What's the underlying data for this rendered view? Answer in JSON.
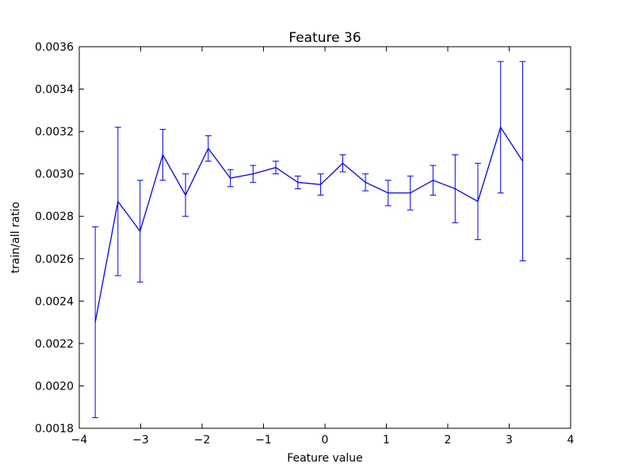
{
  "chart_data": {
    "type": "line",
    "title": "Feature 36",
    "xlabel": "Feature value",
    "ylabel": "train/all ratio",
    "xlim": [
      -4,
      4
    ],
    "ylim": [
      0.0018,
      0.0036
    ],
    "xticks": [
      -4,
      -3,
      -2,
      -1,
      0,
      1,
      2,
      3,
      4
    ],
    "xtick_labels": [
      "−4",
      "−3",
      "−2",
      "−1",
      "0",
      "1",
      "2",
      "3",
      "4"
    ],
    "yticks": [
      0.0018,
      0.002,
      0.0022,
      0.0024,
      0.0026,
      0.0028,
      0.003,
      0.0032,
      0.0034,
      0.0036
    ],
    "ytick_labels": [
      "0.0018",
      "0.0020",
      "0.0022",
      "0.0024",
      "0.0026",
      "0.0028",
      "0.0030",
      "0.0032",
      "0.0034",
      "0.0036"
    ],
    "grid": false,
    "legend": "none",
    "color": "#0000ff",
    "series": [
      {
        "x": [
          -3.74,
          -3.37,
          -3.01,
          -2.64,
          -2.27,
          -1.9,
          -1.54,
          -1.17,
          -0.8,
          -0.44,
          -0.07,
          0.29,
          0.66,
          1.03,
          1.39,
          1.76,
          2.12,
          2.49,
          2.86,
          3.22
        ],
        "y": [
          0.0023,
          0.00287,
          0.00273,
          0.00309,
          0.0029,
          0.00312,
          0.00298,
          0.003,
          0.00303,
          0.00296,
          0.00295,
          0.00305,
          0.00296,
          0.00291,
          0.00291,
          0.00297,
          0.00293,
          0.00287,
          0.00322,
          0.00306
        ],
        "err": [
          0.00045,
          0.00035,
          0.00024,
          0.00012,
          0.0001,
          6e-05,
          4e-05,
          4e-05,
          3e-05,
          3e-05,
          5e-05,
          4e-05,
          4e-05,
          6e-05,
          8e-05,
          7e-05,
          0.00016,
          0.00018,
          0.00031,
          0.00047
        ]
      }
    ]
  }
}
